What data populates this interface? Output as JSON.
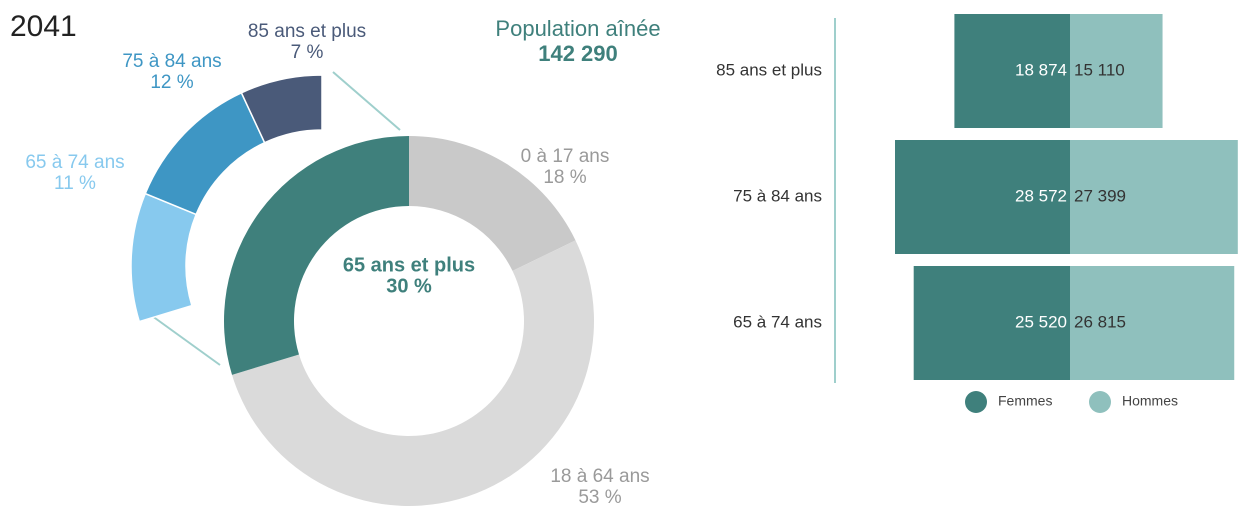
{
  "chart_data": [
    {
      "type": "donut",
      "title": "2041",
      "subtitle": "Population aînée",
      "total": 142290,
      "total_label": "142 290",
      "categories": [
        "0 à 17 ans",
        "18 à 64 ans",
        "65 ans et plus"
      ],
      "values": [
        18,
        53,
        30
      ],
      "value_labels": [
        "18 %",
        "53 %",
        "30 %"
      ],
      "colors": [
        "#c9c9c9",
        "#dadada",
        "#3f807c"
      ],
      "breakdown": {
        "categories": [
          "65 à 74 ans",
          "75 à 84 ans",
          "85 ans et plus"
        ],
        "values": [
          11,
          12,
          7
        ],
        "value_labels": [
          "11 %",
          "12 %",
          "7 %"
        ],
        "colors": [
          "#87c9ee",
          "#3e96c4",
          "#4a5a79"
        ]
      }
    },
    {
      "type": "butterfly",
      "categories": [
        "85 ans et plus",
        "75 à 84 ans",
        "65 à 74 ans"
      ],
      "series": [
        {
          "name": "Femmes",
          "color": "#3f807c",
          "values": [
            18874,
            28572,
            25520
          ],
          "value_labels": [
            "18 874",
            "28 572",
            "25 520"
          ]
        },
        {
          "name": "Hommes",
          "color": "#8fc0bd",
          "values": [
            15110,
            27399,
            26815
          ],
          "value_labels": [
            "15 110",
            "27 399",
            "26 815"
          ]
        }
      ],
      "legend": "bottom"
    }
  ]
}
